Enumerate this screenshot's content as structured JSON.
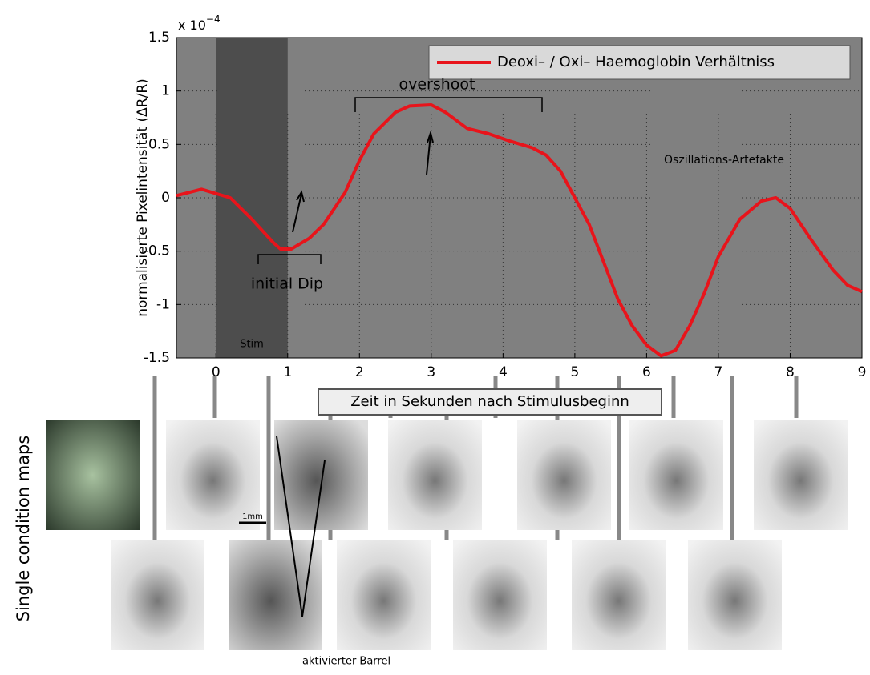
{
  "chart_data": {
    "type": "line",
    "x_axis_label": "Zeit in Sekunden nach Stimulusbeginn",
    "y_axis_label": "normalisierte Pixelintensität (ΔR/R)",
    "y_multiplier": {
      "base": "x 10",
      "power": "−4"
    },
    "xlim": [
      -0.55,
      9
    ],
    "ylim": [
      -1.5,
      1.5
    ],
    "xticks": [
      0,
      1,
      2,
      3,
      4,
      5,
      6,
      7,
      8,
      9
    ],
    "yticks": [
      -1.5,
      -1,
      -0.5,
      0,
      0.5,
      1,
      1.5
    ],
    "grid": true,
    "legend_position": "upper right",
    "stim": {
      "x": [
        0,
        1
      ],
      "label": "Stim"
    },
    "annotations": {
      "overshoot": "overshoot",
      "dip": "initial Dip",
      "artifacts": "Oszillations-Artefakte"
    },
    "series": [
      {
        "name": "Deoxi– / Oxi– Haemoglobin Verhältniss",
        "color": "#e8141b",
        "x": [
          -0.55,
          -0.2,
          0.2,
          0.5,
          0.8,
          0.9,
          1.05,
          1.3,
          1.5,
          1.8,
          2.0,
          2.2,
          2.5,
          2.7,
          3.0,
          3.2,
          3.5,
          3.8,
          4.1,
          4.4,
          4.6,
          4.8,
          5.0,
          5.2,
          5.4,
          5.6,
          5.8,
          6.0,
          6.2,
          6.4,
          6.6,
          6.8,
          7.0,
          7.3,
          7.6,
          7.8,
          8.0,
          8.3,
          8.6,
          8.8,
          9.0
        ],
        "values": [
          0.02,
          0.08,
          0.0,
          -0.2,
          -0.42,
          -0.48,
          -0.48,
          -0.38,
          -0.25,
          0.05,
          0.35,
          0.6,
          0.8,
          0.86,
          0.87,
          0.8,
          0.65,
          0.6,
          0.53,
          0.47,
          0.4,
          0.25,
          0.0,
          -0.25,
          -0.6,
          -0.95,
          -1.2,
          -1.38,
          -1.48,
          -1.43,
          -1.2,
          -0.9,
          -0.55,
          -0.2,
          -0.03,
          0.0,
          -0.1,
          -0.4,
          -0.68,
          -0.82,
          -0.88
        ]
      }
    ]
  },
  "image_panel": {
    "label": "Single condition maps",
    "scale": "1mm",
    "annotation": "aktivierter Barrel"
  }
}
